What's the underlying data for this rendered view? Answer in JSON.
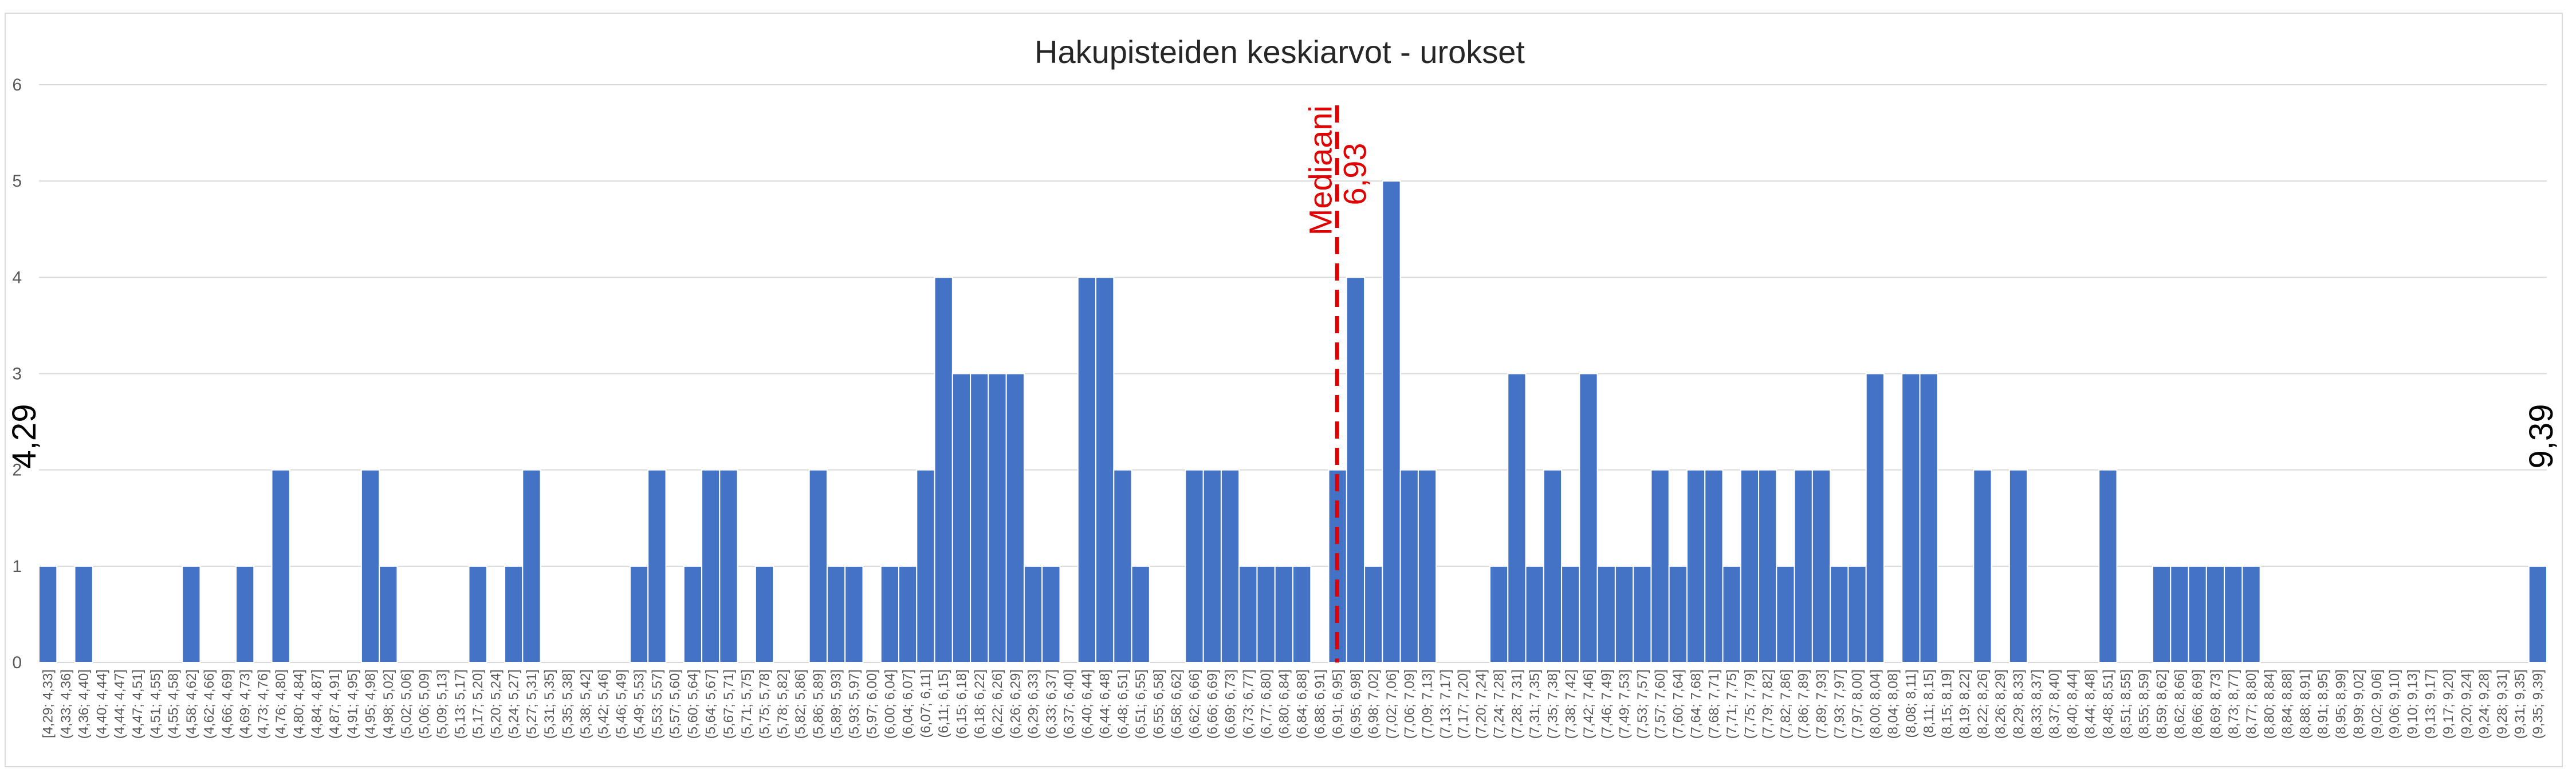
{
  "chart_data": {
    "type": "bar",
    "title": "Hakupisteiden keskiarvot - urokset",
    "xlabel": "",
    "ylabel": "",
    "ylim": [
      0,
      6
    ],
    "yticks": [
      "0",
      "1",
      "2",
      "3",
      "4",
      "5",
      "6"
    ],
    "grid": true,
    "legend": "none",
    "bar_color": "#4472c4",
    "categories": [
      "[4,29; 4,33]",
      "(4,33; 4,36]",
      "(4,36; 4,40]",
      "(4,40; 4,44]",
      "(4,44; 4,47]",
      "(4,47; 4,51]",
      "(4,51; 4,55]",
      "(4,55; 4,58]",
      "(4,58; 4,62]",
      "(4,62; 4,66]",
      "(4,66; 4,69]",
      "(4,69; 4,73]",
      "(4,73; 4,76]",
      "(4,76; 4,80]",
      "(4,80; 4,84]",
      "(4,84; 4,87]",
      "(4,87; 4,91]",
      "(4,91; 4,95]",
      "(4,95; 4,98]",
      "(4,98; 5,02]",
      "(5,02; 5,06]",
      "(5,06; 5,09]",
      "(5,09; 5,13]",
      "(5,13; 5,17]",
      "(5,17; 5,20]",
      "(5,20; 5,24]",
      "(5,24; 5,27]",
      "(5,27; 5,31]",
      "(5,31; 5,35]",
      "(5,35; 5,38]",
      "(5,38; 5,42]",
      "(5,42; 5,46]",
      "(5,46; 5,49]",
      "(5,49; 5,53]",
      "(5,53; 5,57]",
      "(5,57; 5,60]",
      "(5,60; 5,64]",
      "(5,64; 5,67]",
      "(5,67; 5,71]",
      "(5,71; 5,75]",
      "(5,75; 5,78]",
      "(5,78; 5,82]",
      "(5,82; 5,86]",
      "(5,86; 5,89]",
      "(5,89; 5,93]",
      "(5,93; 5,97]",
      "(5,97; 6,00]",
      "(6,00; 6,04]",
      "(6,04; 6,07]",
      "(6,07; 6,11]",
      "(6,11; 6,15]",
      "(6,15; 6,18]",
      "(6,18; 6,22]",
      "(6,22; 6,26]",
      "(6,26; 6,29]",
      "(6,29; 6,33]",
      "(6,33; 6,37]",
      "(6,37; 6,40]",
      "(6,40; 6,44]",
      "(6,44; 6,48]",
      "(6,48; 6,51]",
      "(6,51; 6,55]",
      "(6,55; 6,58]",
      "(6,58; 6,62]",
      "(6,62; 6,66]",
      "(6,66; 6,69]",
      "(6,69; 6,73]",
      "(6,73; 6,77]",
      "(6,77; 6,80]",
      "(6,80; 6,84]",
      "(6,84; 6,88]",
      "(6,88; 6,91]",
      "(6,91; 6,95]",
      "(6,95; 6,98]",
      "(6,98; 7,02]",
      "(7,02; 7,06]",
      "(7,06; 7,09]",
      "(7,09; 7,13]",
      "(7,13; 7,17]",
      "(7,17; 7,20]",
      "(7,20; 7,24]",
      "(7,24; 7,28]",
      "(7,28; 7,31]",
      "(7,31; 7,35]",
      "(7,35; 7,38]",
      "(7,38; 7,42]",
      "(7,42; 7,46]",
      "(7,46; 7,49]",
      "(7,49; 7,53]",
      "(7,53; 7,57]",
      "(7,57; 7,60]",
      "(7,60; 7,64]",
      "(7,64; 7,68]",
      "(7,68; 7,71]",
      "(7,71; 7,75]",
      "(7,75; 7,79]",
      "(7,79; 7,82]",
      "(7,82; 7,86]",
      "(7,86; 7,89]",
      "(7,89; 7,93]",
      "(7,93; 7,97]",
      "(7,97; 8,00]",
      "(8,00; 8,04]",
      "(8,04; 8,08]",
      "(8,08; 8,11]",
      "(8,11; 8,15]",
      "(8,15; 8,19]",
      "(8,19; 8,22]",
      "(8,22; 8,26]",
      "(8,26; 8,29]",
      "(8,29; 8,33]",
      "(8,33; 8,37]",
      "(8,37; 8,40]",
      "(8,40; 8,44]",
      "(8,44; 8,48]",
      "(8,48; 8,51]",
      "(8,51; 8,55]",
      "(8,55; 8,59]",
      "(8,59; 8,62]",
      "(8,62; 8,66]",
      "(8,66; 8,69]",
      "(8,69; 8,73]",
      "(8,73; 8,77]",
      "(8,77; 8,80]",
      "(8,80; 8,84]",
      "(8,84; 8,88]",
      "(8,88; 8,91]",
      "(8,91; 8,95]",
      "(8,95; 8,99]",
      "(8,99; 9,02]",
      "(9,02; 9,06]",
      "(9,06; 9,10]",
      "(9,10; 9,13]",
      "(9,13; 9,17]",
      "(9,17; 9,20]",
      "(9,20; 9,24]",
      "(9,24; 9,28]",
      "(9,28; 9,31]",
      "(9,31; 9,35]",
      "(9,35; 9,39]"
    ],
    "values": [
      1,
      0,
      1,
      0,
      0,
      0,
      0,
      0,
      1,
      0,
      0,
      1,
      0,
      2,
      0,
      0,
      0,
      0,
      2,
      1,
      0,
      0,
      0,
      0,
      1,
      0,
      1,
      2,
      0,
      0,
      0,
      0,
      0,
      1,
      2,
      0,
      1,
      2,
      2,
      0,
      1,
      0,
      0,
      2,
      1,
      1,
      0,
      1,
      1,
      2,
      4,
      3,
      3,
      3,
      3,
      1,
      1,
      0,
      4,
      4,
      2,
      1,
      0,
      0,
      2,
      2,
      2,
      1,
      1,
      1,
      1,
      0,
      2,
      4,
      1,
      5,
      2,
      2,
      0,
      0,
      0,
      1,
      3,
      1,
      2,
      1,
      3,
      1,
      1,
      1,
      2,
      1,
      2,
      2,
      1,
      2,
      2,
      1,
      2,
      2,
      1,
      1,
      3,
      0,
      3,
      3,
      0,
      0,
      2,
      0,
      2,
      0,
      0,
      0,
      0,
      2,
      0,
      0,
      1,
      1,
      1,
      1,
      1,
      1,
      0,
      0,
      0,
      0,
      0,
      0,
      0,
      0,
      0,
      0,
      0,
      0,
      0,
      0,
      0,
      1
    ],
    "annotations": {
      "median_label": "Mediaani",
      "median_value": "6,93",
      "median_x": 6.93,
      "left_edge": "4,29",
      "right_edge": "9,39"
    }
  }
}
